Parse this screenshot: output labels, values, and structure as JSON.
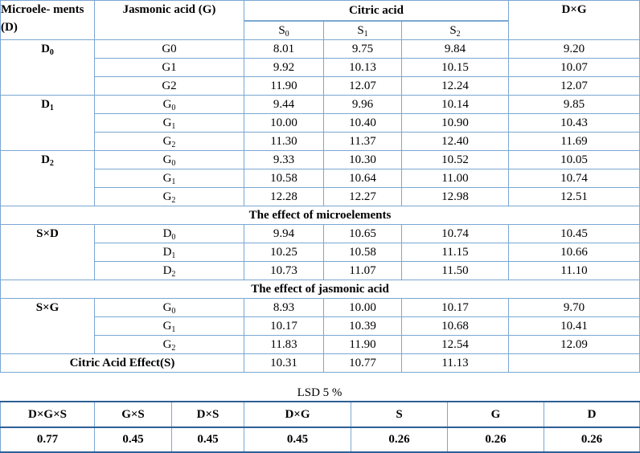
{
  "header": {
    "microelements": "Microele- ments (D)",
    "jasmonic": "Jasmonic acid (G)",
    "citric": "Citric acid",
    "dxg": "D×G",
    "s_cols": [
      {
        "base": "S",
        "sub": "0"
      },
      {
        "base": "S",
        "sub": "1"
      },
      {
        "base": "S",
        "sub": "2"
      }
    ]
  },
  "groups": [
    {
      "label": {
        "base": "D",
        "sub": "0"
      },
      "rows": [
        {
          "g": {
            "base": "G0",
            "sub": ""
          },
          "s0": "8.01",
          "s1": "9.75",
          "s2": "9.84",
          "dxg": "9.20"
        },
        {
          "g": {
            "base": "G1",
            "sub": ""
          },
          "s0": "9.92",
          "s1": "10.13",
          "s2": "10.15",
          "dxg": "10.07"
        },
        {
          "g": {
            "base": "G2",
            "sub": ""
          },
          "s0": "11.90",
          "s1": "12.07",
          "s2": "12.24",
          "dxg": "12.07"
        }
      ]
    },
    {
      "label": {
        "base": "D",
        "sub": "1"
      },
      "rows": [
        {
          "g": {
            "base": "G",
            "sub": "0"
          },
          "s0": "9.44",
          "s1": "9.96",
          "s2": "10.14",
          "dxg": "9.85"
        },
        {
          "g": {
            "base": "G",
            "sub": "1"
          },
          "s0": "10.00",
          "s1": "10.40",
          "s2": "10.90",
          "dxg": "10.43"
        },
        {
          "g": {
            "base": "G",
            "sub": "2"
          },
          "s0": "11.30",
          "s1": "11.37",
          "s2": "12.40",
          "dxg": "11.69"
        }
      ]
    },
    {
      "label": {
        "base": "D",
        "sub": "2"
      },
      "rows": [
        {
          "g": {
            "base": "G",
            "sub": "0"
          },
          "s0": "9.33",
          "s1": "10.30",
          "s2": "10.52",
          "dxg": "10.05"
        },
        {
          "g": {
            "base": "G",
            "sub": "1"
          },
          "s0": "10.58",
          "s1": "10.64",
          "s2": "11.00",
          "dxg": "10.74"
        },
        {
          "g": {
            "base": "G",
            "sub": "2"
          },
          "s0": "12.28",
          "s1": "12.27",
          "s2": "12.98",
          "dxg": "12.51"
        }
      ]
    }
  ],
  "micro_section": {
    "title": "The effect of microelements",
    "label": "S×D",
    "rows": [
      {
        "g": {
          "base": "D",
          "sub": "0"
        },
        "s0": "9.94",
        "s1": "10.65",
        "s2": "10.74",
        "dxg": "10.45"
      },
      {
        "g": {
          "base": "D",
          "sub": "1"
        },
        "s0": "10.25",
        "s1": "10.58",
        "s2": "11.15",
        "dxg": "10.66"
      },
      {
        "g": {
          "base": "D",
          "sub": "2"
        },
        "s0": "10.73",
        "s1": "11.07",
        "s2": "11.50",
        "dxg": "11.10"
      }
    ]
  },
  "jasmonic_section": {
    "title": "The effect of jasmonic acid",
    "label": "S×G",
    "rows": [
      {
        "g": {
          "base": "G",
          "sub": "0"
        },
        "s0": "8.93",
        "s1": "10.00",
        "s2": "10.17",
        "dxg": "9.70"
      },
      {
        "g": {
          "base": "G",
          "sub": "1"
        },
        "s0": "10.17",
        "s1": "10.39",
        "s2": "10.68",
        "dxg": "10.41"
      },
      {
        "g": {
          "base": "G",
          "sub": "2"
        },
        "s0": "11.83",
        "s1": "11.90",
        "s2": "12.54",
        "dxg": "12.09"
      }
    ]
  },
  "citric_effect": {
    "label": "Citric Acid Effect(S)",
    "s0": "10.31",
    "s1": "10.77",
    "s2": "11.13"
  },
  "lsd": {
    "title": "LSD 5 %",
    "headers": [
      "D×G×S",
      "G×S",
      "D×S",
      "D×G",
      "S",
      "G",
      "D"
    ],
    "values": [
      "0.77",
      "0.45",
      "0.45",
      "0.45",
      "0.26",
      "0.26",
      "0.26"
    ]
  }
}
